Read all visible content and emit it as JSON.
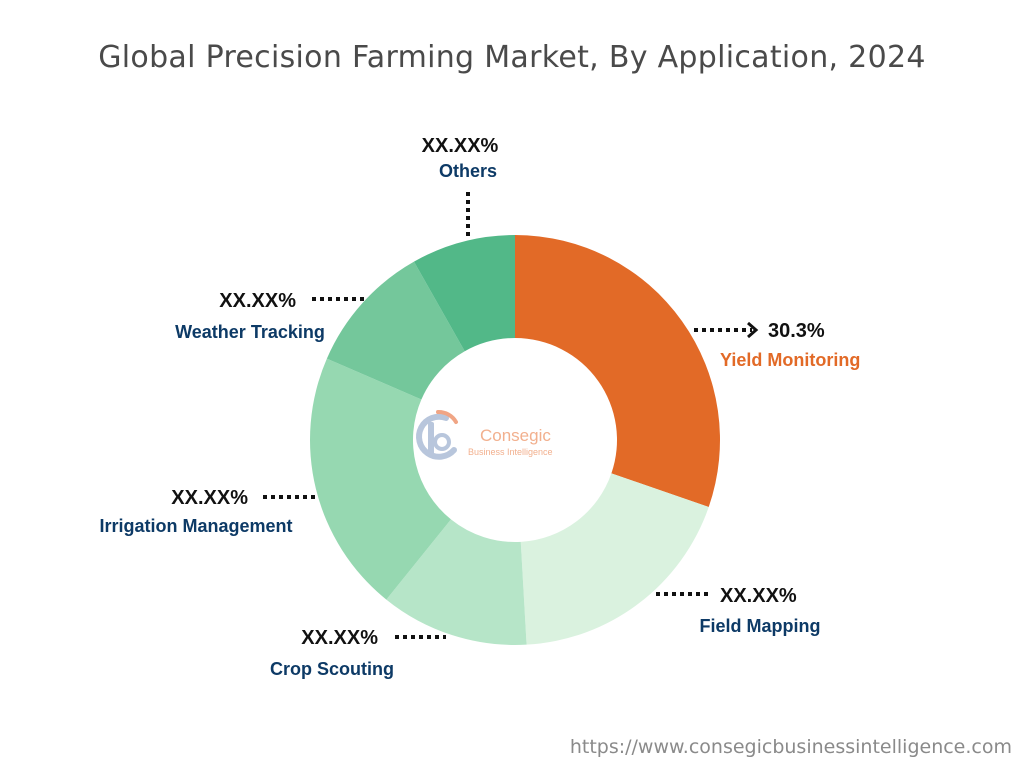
{
  "chart_data": {
    "type": "pie",
    "title": "Global Precision Farming Market, By Application, 2024",
    "donut": true,
    "slices": [
      {
        "label": "Yield Monitoring",
        "value_label": "30.3%",
        "value": 30.3,
        "color": "#e26a27",
        "label_color": "#e26a27"
      },
      {
        "label": "Field Mapping",
        "value_label": "XX.XX%",
        "value": 18.8,
        "color": "#daf2df",
        "label_color": "#0d3a66"
      },
      {
        "label": "Crop Scouting",
        "value_label": "XX.XX%",
        "value": 11.7,
        "color": "#b6e5c8",
        "label_color": "#0d3a66"
      },
      {
        "label": "Irrigation Management",
        "value_label": "XX.XX%",
        "value": 20.7,
        "color": "#96d8b1",
        "label_color": "#0d3a66"
      },
      {
        "label": "Weather Tracking",
        "value_label": "XX.XX%",
        "value": 10.3,
        "color": "#74c79b",
        "label_color": "#0d3a66"
      },
      {
        "label": "Others",
        "value_label": "XX.XX%",
        "value": 8.2,
        "color": "#52b888",
        "label_color": "#0d3a66"
      }
    ]
  },
  "logo": {
    "name": "Consegic",
    "tagline": "Business Intelligence"
  },
  "footer": {
    "url": "https://www.consegicbusinessintelligence.com"
  }
}
